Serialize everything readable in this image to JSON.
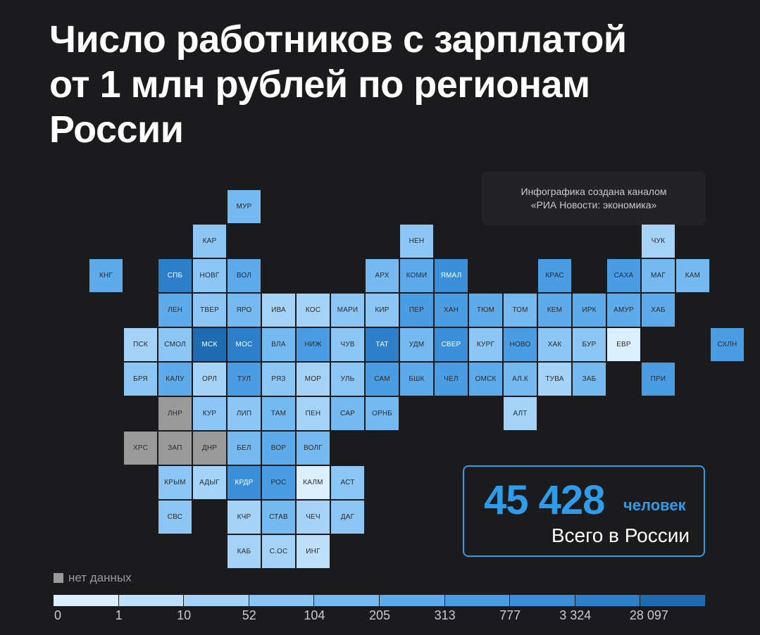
{
  "title": {
    "line1": "Число работников с зарплатой",
    "line2": "от 1 млн рублей по регионам",
    "line3": "России"
  },
  "credit": {
    "line1": "Инфографика создана каналом",
    "line2": "«РИА Новости: экономика»"
  },
  "total": {
    "value": "45 428",
    "unit": "человек",
    "label": "Всего в России"
  },
  "legend": {
    "no_data": "нет данных",
    "no_data_color": "#9a9a9a",
    "scale_colors": [
      "#dcefff",
      "#bfe0fb",
      "#a5d3f8",
      "#8cc6f5",
      "#74b9f0",
      "#5dabea",
      "#4a9de2",
      "#3a8fd8",
      "#2d7fc9",
      "#1f6bb0"
    ],
    "ticks": [
      "0",
      "1",
      "10",
      "52",
      "104",
      "205",
      "313",
      "777",
      "3 324",
      "28 097"
    ]
  },
  "regions": [
    {
      "label": "МУР",
      "col": 5,
      "row": 0,
      "level": 4
    },
    {
      "label": "КАР",
      "col": 4,
      "row": 1,
      "level": 3
    },
    {
      "label": "НЕН",
      "col": 10,
      "row": 1,
      "level": 3
    },
    {
      "label": "ЧУК",
      "col": 17,
      "row": 1,
      "level": 2
    },
    {
      "label": "КНГ",
      "col": 1,
      "row": 2,
      "level": 5
    },
    {
      "label": "СПБ",
      "col": 3,
      "row": 2,
      "level": 8
    },
    {
      "label": "НОВГ",
      "col": 4,
      "row": 2,
      "level": 3
    },
    {
      "label": "ВОЛ",
      "col": 5,
      "row": 2,
      "level": 5
    },
    {
      "label": "АРХ",
      "col": 9,
      "row": 2,
      "level": 4
    },
    {
      "label": "КОМИ",
      "col": 10,
      "row": 2,
      "level": 5
    },
    {
      "label": "ЯМАЛ",
      "col": 11,
      "row": 2,
      "level": 7
    },
    {
      "label": "КРАС",
      "col": 14,
      "row": 2,
      "level": 6
    },
    {
      "label": "САХА",
      "col": 16,
      "row": 2,
      "level": 6
    },
    {
      "label": "МАГ",
      "col": 17,
      "row": 2,
      "level": 4
    },
    {
      "label": "КАМ",
      "col": 18,
      "row": 2,
      "level": 4
    },
    {
      "label": "ЛЕН",
      "col": 3,
      "row": 3,
      "level": 5
    },
    {
      "label": "ТВЕР",
      "col": 4,
      "row": 3,
      "level": 3
    },
    {
      "label": "ЯРО",
      "col": 5,
      "row": 3,
      "level": 4
    },
    {
      "label": "ИВА",
      "col": 6,
      "row": 3,
      "level": 2
    },
    {
      "label": "КОС",
      "col": 7,
      "row": 3,
      "level": 2
    },
    {
      "label": "МАРИ",
      "col": 8,
      "row": 3,
      "level": 3
    },
    {
      "label": "КИР",
      "col": 9,
      "row": 3,
      "level": 3
    },
    {
      "label": "ПЕР",
      "col": 10,
      "row": 3,
      "level": 6
    },
    {
      "label": "ХАН",
      "col": 11,
      "row": 3,
      "level": 6
    },
    {
      "label": "ТЮМ",
      "col": 12,
      "row": 3,
      "level": 5
    },
    {
      "label": "ТОМ",
      "col": 13,
      "row": 3,
      "level": 4
    },
    {
      "label": "КЕМ",
      "col": 14,
      "row": 3,
      "level": 5
    },
    {
      "label": "ИРК",
      "col": 15,
      "row": 3,
      "level": 5
    },
    {
      "label": "АМУР",
      "col": 16,
      "row": 3,
      "level": 5
    },
    {
      "label": "ХАБ",
      "col": 17,
      "row": 3,
      "level": 5
    },
    {
      "label": "ПСК",
      "col": 2,
      "row": 4,
      "level": 2
    },
    {
      "label": "СМОЛ",
      "col": 3,
      "row": 4,
      "level": 3
    },
    {
      "label": "МСК",
      "col": 4,
      "row": 4,
      "level": 9
    },
    {
      "label": "МОС",
      "col": 5,
      "row": 4,
      "level": 8
    },
    {
      "label": "ВЛА",
      "col": 6,
      "row": 4,
      "level": 4
    },
    {
      "label": "НИЖ",
      "col": 7,
      "row": 4,
      "level": 6
    },
    {
      "label": "ЧУВ",
      "col": 8,
      "row": 4,
      "level": 3
    },
    {
      "label": "ТАТ",
      "col": 9,
      "row": 4,
      "level": 8
    },
    {
      "label": "УДМ",
      "col": 10,
      "row": 4,
      "level": 4
    },
    {
      "label": "СВЕР",
      "col": 11,
      "row": 4,
      "level": 7
    },
    {
      "label": "КУРГ",
      "col": 12,
      "row": 4,
      "level": 3
    },
    {
      "label": "НОВО",
      "col": 13,
      "row": 4,
      "level": 6
    },
    {
      "label": "ХАК",
      "col": 14,
      "row": 4,
      "level": 3
    },
    {
      "label": "БУР",
      "col": 15,
      "row": 4,
      "level": 3
    },
    {
      "label": "ЕВР",
      "col": 16,
      "row": 4,
      "level": 0
    },
    {
      "label": "СХЛН",
      "col": 19,
      "row": 4,
      "level": 6
    },
    {
      "label": "БРЯ",
      "col": 2,
      "row": 5,
      "level": 3
    },
    {
      "label": "КАЛУ",
      "col": 3,
      "row": 5,
      "level": 5
    },
    {
      "label": "ОРЛ",
      "col": 4,
      "row": 5,
      "level": 2
    },
    {
      "label": "ТУЛ",
      "col": 5,
      "row": 5,
      "level": 6
    },
    {
      "label": "РЯЗ",
      "col": 6,
      "row": 5,
      "level": 3
    },
    {
      "label": "МОР",
      "col": 7,
      "row": 5,
      "level": 2
    },
    {
      "label": "УЛЬ",
      "col": 8,
      "row": 5,
      "level": 3
    },
    {
      "label": "САМ",
      "col": 9,
      "row": 5,
      "level": 6
    },
    {
      "label": "БШК",
      "col": 10,
      "row": 5,
      "level": 5
    },
    {
      "label": "ЧЕЛ",
      "col": 11,
      "row": 5,
      "level": 6
    },
    {
      "label": "ОМСК",
      "col": 12,
      "row": 5,
      "level": 5
    },
    {
      "label": "АЛ.К",
      "col": 13,
      "row": 5,
      "level": 4
    },
    {
      "label": "ТУВА",
      "col": 14,
      "row": 5,
      "level": 2
    },
    {
      "label": "ЗАБ",
      "col": 15,
      "row": 5,
      "level": 4
    },
    {
      "label": "ПРИ",
      "col": 17,
      "row": 5,
      "level": 6
    },
    {
      "label": "ЛНР",
      "col": 3,
      "row": 6,
      "level": -1
    },
    {
      "label": "КУР",
      "col": 4,
      "row": 6,
      "level": 3
    },
    {
      "label": "ЛИП",
      "col": 5,
      "row": 6,
      "level": 3
    },
    {
      "label": "ТАМ",
      "col": 6,
      "row": 6,
      "level": 4
    },
    {
      "label": "ПЕН",
      "col": 7,
      "row": 6,
      "level": 2
    },
    {
      "label": "САР",
      "col": 8,
      "row": 6,
      "level": 4
    },
    {
      "label": "ОРНБ",
      "col": 9,
      "row": 6,
      "level": 4
    },
    {
      "label": "АЛТ",
      "col": 13,
      "row": 6,
      "level": 2
    },
    {
      "label": "ХРС",
      "col": 2,
      "row": 7,
      "level": -1
    },
    {
      "label": "ЗАП",
      "col": 3,
      "row": 7,
      "level": -1
    },
    {
      "label": "ДНР",
      "col": 4,
      "row": 7,
      "level": -1
    },
    {
      "label": "БЕЛ",
      "col": 5,
      "row": 7,
      "level": 4
    },
    {
      "label": "ВОР",
      "col": 6,
      "row": 7,
      "level": 5
    },
    {
      "label": "ВОЛГ",
      "col": 7,
      "row": 7,
      "level": 4
    },
    {
      "label": "КРЫМ",
      "col": 3,
      "row": 8,
      "level": 3
    },
    {
      "label": "АДЫГ",
      "col": 4,
      "row": 8,
      "level": 2
    },
    {
      "label": "КРДР",
      "col": 5,
      "row": 8,
      "level": 7
    },
    {
      "label": "РОС",
      "col": 6,
      "row": 8,
      "level": 6
    },
    {
      "label": "КАЛМ",
      "col": 7,
      "row": 8,
      "level": 0
    },
    {
      "label": "АСТ",
      "col": 8,
      "row": 8,
      "level": 3
    },
    {
      "label": "СВС",
      "col": 3,
      "row": 9,
      "level": 3
    },
    {
      "label": "КЧР",
      "col": 5,
      "row": 9,
      "level": 2
    },
    {
      "label": "СТАВ",
      "col": 6,
      "row": 9,
      "level": 4
    },
    {
      "label": "ЧЕЧ",
      "col": 7,
      "row": 9,
      "level": 2
    },
    {
      "label": "ДАГ",
      "col": 8,
      "row": 9,
      "level": 3
    },
    {
      "label": "КАБ",
      "col": 5,
      "row": 10,
      "level": 2
    },
    {
      "label": "С.ОС",
      "col": 6,
      "row": 10,
      "level": 2
    },
    {
      "label": "ИНГ",
      "col": 7,
      "row": 10,
      "level": 1
    }
  ]
}
